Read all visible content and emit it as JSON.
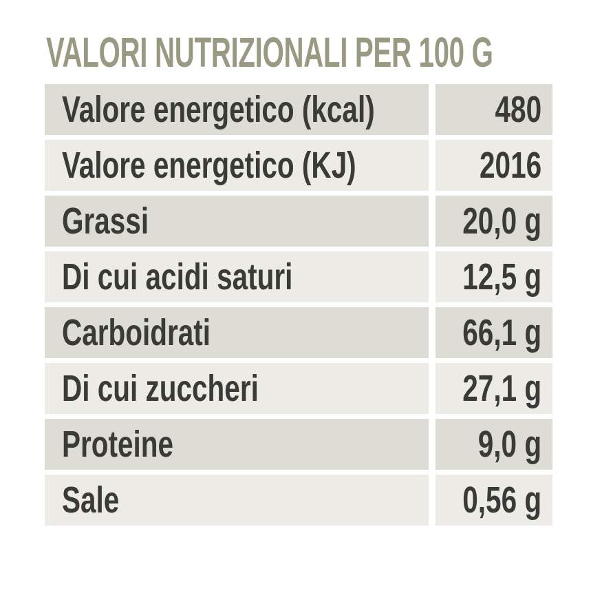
{
  "title": "VALORI NUTRIZIONALI PER 100 G",
  "table": {
    "rows": [
      {
        "label": "Valore energetico (kcal)",
        "value": "480"
      },
      {
        "label": "Valore energetico (KJ)",
        "value": "2016"
      },
      {
        "label": "Grassi",
        "value": "20,0 g"
      },
      {
        "label": "Di cui acidi saturi",
        "value": "12,5 g"
      },
      {
        "label": "Carboidrati",
        "value": "66,1 g"
      },
      {
        "label": "Di cui zuccheri",
        "value": "27,1 g"
      },
      {
        "label": "Proteine",
        "value": "9,0 g"
      },
      {
        "label": "Sale",
        "value": "0,56 g"
      }
    ]
  },
  "colors": {
    "title": "#9a9a83",
    "text": "#3a3a36",
    "row_dark": "#deddd5",
    "row_light": "#ecebe6",
    "background": "#ffffff"
  }
}
